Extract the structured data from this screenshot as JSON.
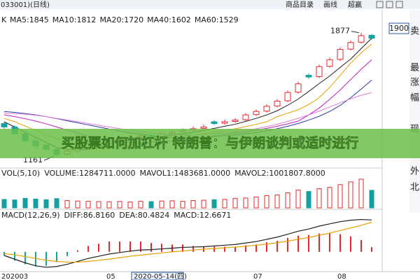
{
  "header": {
    "code": "033001)(日线)",
    "buttons": [
      "商品目录",
      "画线",
      "超赢"
    ]
  },
  "side_panel": [
    "卖",
    "最",
    "涨",
    "幅",
    "现",
    "外",
    "北"
  ],
  "overlay_text": "买股票如何加杠杆 特朗普：与伊朗谈判或适时进行",
  "chart_data": [
    {
      "type": "candlestick",
      "label": "K",
      "up_color": "#e8242c",
      "down_color": "#14a0a0",
      "categories": [
        "202003",
        null,
        null,
        null,
        null,
        null,
        null,
        null,
        null,
        null,
        "05",
        null,
        "2020-05-14(四)",
        null,
        null,
        null,
        null,
        null,
        null,
        null,
        null,
        null,
        null,
        null,
        "07",
        null,
        null,
        null,
        null,
        null,
        null,
        null,
        "08",
        null,
        null,
        null
      ],
      "open": [
        1350,
        1330,
        1290,
        1250,
        1225,
        1200,
        1172,
        1192,
        1212,
        1232,
        1242,
        1252,
        1262,
        1272,
        1282,
        1276,
        1292,
        1302,
        1312,
        1322,
        1360,
        1352,
        1362,
        1372,
        1402,
        1422,
        1452,
        1482,
        1532,
        1630,
        1622,
        1682,
        1722,
        1782,
        1822,
        1862
      ],
      "high": [
        1362,
        1340,
        1300,
        1262,
        1235,
        1208,
        1200,
        1220,
        1240,
        1252,
        1262,
        1272,
        1282,
        1292,
        1294,
        1300,
        1312,
        1322,
        1332,
        1342,
        1370,
        1372,
        1382,
        1410,
        1432,
        1462,
        1492,
        1542,
        1592,
        1642,
        1692,
        1732,
        1792,
        1832,
        1877,
        1870
      ],
      "low": [
        1318,
        1280,
        1240,
        1208,
        1188,
        1161,
        1165,
        1182,
        1204,
        1222,
        1234,
        1244,
        1254,
        1262,
        1266,
        1268,
        1284,
        1294,
        1304,
        1314,
        1340,
        1344,
        1354,
        1364,
        1394,
        1414,
        1444,
        1474,
        1524,
        1608,
        1614,
        1674,
        1714,
        1774,
        1814,
        1836
      ],
      "close": [
        1330,
        1290,
        1250,
        1220,
        1200,
        1170,
        1190,
        1210,
        1230,
        1240,
        1250,
        1260,
        1270,
        1280,
        1275,
        1290,
        1300,
        1310,
        1320,
        1330,
        1350,
        1360,
        1370,
        1400,
        1420,
        1450,
        1480,
        1530,
        1580,
        1620,
        1680,
        1720,
        1780,
        1820,
        1860,
        1845
      ],
      "series": [
        {
          "name": "MA5:1845",
          "color": "#202020",
          "values": [
            1360,
            1330,
            1300,
            1270,
            1240,
            1210,
            1200,
            1196,
            1200,
            1214,
            1230,
            1246,
            1254,
            1262,
            1269,
            1276,
            1283,
            1290,
            1299,
            1310,
            1322,
            1334,
            1346,
            1362,
            1380,
            1400,
            1424,
            1456,
            1492,
            1536,
            1582,
            1626,
            1676,
            1724,
            1785,
            1845
          ]
        },
        {
          "name": "MA10:1812",
          "color": "#e8a000",
          "values": [
            1380,
            1360,
            1335,
            1310,
            1285,
            1262,
            1240,
            1222,
            1210,
            1205,
            1205,
            1210,
            1222,
            1234,
            1246,
            1258,
            1268,
            1276,
            1284,
            1292,
            1300,
            1310,
            1320,
            1332,
            1346,
            1360,
            1390,
            1410,
            1430,
            1460,
            1500,
            1560,
            1630,
            1700,
            1760,
            1812
          ]
        },
        {
          "name": "MA20:1720",
          "color": "#c020c0",
          "values": [
            1400,
            1390,
            1378,
            1364,
            1348,
            1330,
            1312,
            1295,
            1278,
            1262,
            1250,
            1244,
            1240,
            1240,
            1242,
            1246,
            1252,
            1258,
            1264,
            1270,
            1278,
            1286,
            1294,
            1302,
            1312,
            1322,
            1334,
            1348,
            1364,
            1400,
            1440,
            1490,
            1545,
            1605,
            1665,
            1720
          ]
        },
        {
          "name": "MA40:1602",
          "color": "#2a3ea8",
          "values": [
            1420,
            1415,
            1408,
            1400,
            1390,
            1378,
            1366,
            1354,
            1342,
            1330,
            1318,
            1306,
            1296,
            1288,
            1280,
            1274,
            1270,
            1268,
            1268,
            1270,
            1274,
            1278,
            1284,
            1290,
            1298,
            1308,
            1320,
            1334,
            1350,
            1370,
            1392,
            1420,
            1455,
            1500,
            1550,
            1602
          ]
        },
        {
          "name": "MA60:1529",
          "color": "#e07ad8",
          "values": [
            1410,
            1408,
            1404,
            1398,
            1390,
            1380,
            1370,
            1360,
            1350,
            1340,
            1330,
            1320,
            1310,
            1302,
            1296,
            1290,
            1286,
            1284,
            1284,
            1286,
            1290,
            1296,
            1302,
            1310,
            1320,
            1332,
            1346,
            1362,
            1380,
            1400,
            1422,
            1446,
            1470,
            1494,
            1514,
            1529
          ]
        }
      ],
      "ylim": [
        1100,
        2010
      ],
      "yticks": [
        1900
      ]
    },
    {
      "type": "bar",
      "title": "VOL(5,10)",
      "legend": [
        {
          "text": "VOLUME:1284711.0000",
          "color": "#202020"
        },
        {
          "text": "MAVOL1:1483681.0000",
          "color": "#e8a000"
        },
        {
          "text": "MAVOL2:1001807.8000",
          "color": "#c020c0"
        }
      ],
      "values": [
        620000,
        580000,
        700000,
        650000,
        600000,
        680000,
        540000,
        500000,
        480000,
        460000,
        450000,
        470000,
        440000,
        480000,
        460000,
        500000,
        520000,
        480000,
        540000,
        560000,
        600000,
        620000,
        680000,
        720000,
        800000,
        900000,
        950000,
        1100000,
        1300000,
        1200000,
        1400000,
        1500000,
        1700000,
        1900000,
        2100000,
        1284711
      ],
      "ylim": [
        0,
        2200000
      ]
    },
    {
      "type": "macd",
      "title": "MACD(12,26,9)",
      "legend": [
        {
          "text": "DIFF:86.8160",
          "color": "#202020"
        },
        {
          "text": "DEA:80.4824",
          "color": "#e8a000"
        },
        {
          "text": "MACD:12.6671",
          "color": "#c020c0"
        }
      ],
      "series": [
        {
          "name": "DIFF",
          "color": "#202020",
          "values": [
            -10,
            -20,
            -30,
            -38,
            -42,
            -40,
            -34,
            -26,
            -18,
            -12,
            -6,
            -2,
            2,
            5,
            6,
            8,
            10,
            12,
            13,
            14,
            16,
            18,
            20,
            24,
            28,
            34,
            40,
            48,
            56,
            62,
            70,
            76,
            82,
            86,
            88,
            86.816
          ]
        },
        {
          "name": "DEA",
          "color": "#e8a000",
          "values": [
            -5,
            -8,
            -13,
            -18,
            -23,
            -26,
            -28,
            -28,
            -26,
            -23,
            -20,
            -16,
            -12,
            -9,
            -6,
            -3,
            0,
            2,
            5,
            7,
            9,
            11,
            13,
            15,
            18,
            21,
            25,
            29,
            34,
            39,
            45,
            51,
            58,
            65,
            72,
            80.4824
          ]
        }
      ],
      "values": [
        -10,
        -24,
        -34,
        -40,
        -38,
        -28,
        -12,
        4,
        16,
        22,
        28,
        28,
        28,
        28,
        24,
        22,
        20,
        20,
        16,
        14,
        14,
        14,
        14,
        18,
        20,
        26,
        30,
        38,
        44,
        46,
        50,
        50,
        48,
        42,
        32,
        12.6671
      ],
      "ylim": [
        -50,
        110
      ]
    }
  ]
}
